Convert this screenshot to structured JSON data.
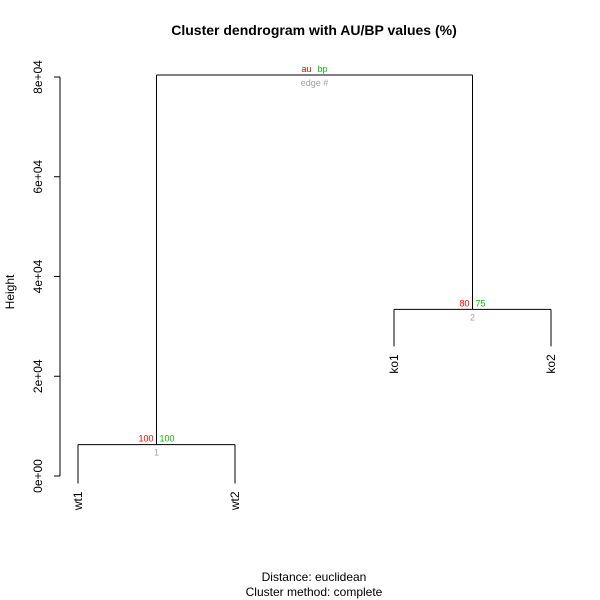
{
  "chart_data": {
    "type": "dendrogram",
    "title": "Cluster dendrogram with AU/BP values (%)",
    "ylabel": "Height",
    "ylim": [
      0,
      80000
    ],
    "yticks": [
      {
        "value": 0,
        "label": "0e+00"
      },
      {
        "value": 20000,
        "label": "2e+04"
      },
      {
        "value": 40000,
        "label": "4e+04"
      },
      {
        "value": 60000,
        "label": "6e+04"
      },
      {
        "value": 80000,
        "label": "8e+04"
      }
    ],
    "leaves": [
      {
        "label": "wt1",
        "leafHeight": -1500
      },
      {
        "label": "wt2",
        "leafHeight": -1500
      },
      {
        "label": "ko1",
        "leafHeight": 26000
      },
      {
        "label": "ko2",
        "leafHeight": 26000
      }
    ],
    "merges": [
      {
        "left": 0,
        "right": 1,
        "height": 6300,
        "au": "100",
        "bp": "100",
        "edge": "1"
      },
      {
        "left": 2,
        "right": 3,
        "height": 33400,
        "au": "80",
        "bp": "75",
        "edge": "2"
      },
      {
        "left": "m0",
        "right": "m1",
        "height": 80400,
        "au": "au",
        "bp": "bp",
        "edge": "edge #"
      }
    ],
    "legend": {
      "au": "au",
      "bp": "bp",
      "edge": "edge #"
    },
    "colors": {
      "au": "#ff0000",
      "bp": "#00c000",
      "edge": "#a0a0a0"
    }
  },
  "footer": {
    "distance": "Distance:  euclidean",
    "method": "Cluster method: complete"
  }
}
